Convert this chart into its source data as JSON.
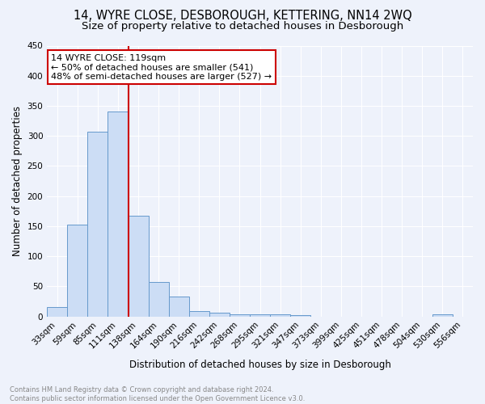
{
  "title": "14, WYRE CLOSE, DESBOROUGH, KETTERING, NN14 2WQ",
  "subtitle": "Size of property relative to detached houses in Desborough",
  "xlabel": "Distribution of detached houses by size in Desborough",
  "ylabel": "Number of detached properties",
  "categories": [
    "33sqm",
    "59sqm",
    "85sqm",
    "111sqm",
    "138sqm",
    "164sqm",
    "190sqm",
    "216sqm",
    "242sqm",
    "268sqm",
    "295sqm",
    "321sqm",
    "347sqm",
    "373sqm",
    "399sqm",
    "425sqm",
    "451sqm",
    "478sqm",
    "504sqm",
    "530sqm",
    "556sqm"
  ],
  "values": [
    15,
    152,
    307,
    340,
    167,
    57,
    33,
    9,
    6,
    4,
    4,
    4,
    2,
    0,
    0,
    0,
    0,
    0,
    0,
    3,
    0
  ],
  "bar_color": "#ccddf5",
  "bar_edge_color": "#6699cc",
  "property_line_color": "#cc0000",
  "property_line_bar_index": 3.5,
  "annotation_text": "14 WYRE CLOSE: 119sqm\n← 50% of detached houses are smaller (541)\n48% of semi-detached houses are larger (527) →",
  "annotation_box_color": "#ffffff",
  "annotation_box_edge_color": "#cc0000",
  "ylim": [
    0,
    450
  ],
  "yticks": [
    0,
    50,
    100,
    150,
    200,
    250,
    300,
    350,
    400,
    450
  ],
  "footnote": "Contains HM Land Registry data © Crown copyright and database right 2024.\nContains public sector information licensed under the Open Government Licence v3.0.",
  "bg_color": "#eef2fb",
  "plot_bg_color": "#eef2fb",
  "grid_color": "#ffffff",
  "title_fontsize": 10.5,
  "subtitle_fontsize": 9.5,
  "tick_fontsize": 7.5,
  "ylabel_fontsize": 8.5,
  "xlabel_fontsize": 8.5,
  "annotation_fontsize": 8,
  "footnote_fontsize": 6,
  "footnote_color": "#888888"
}
